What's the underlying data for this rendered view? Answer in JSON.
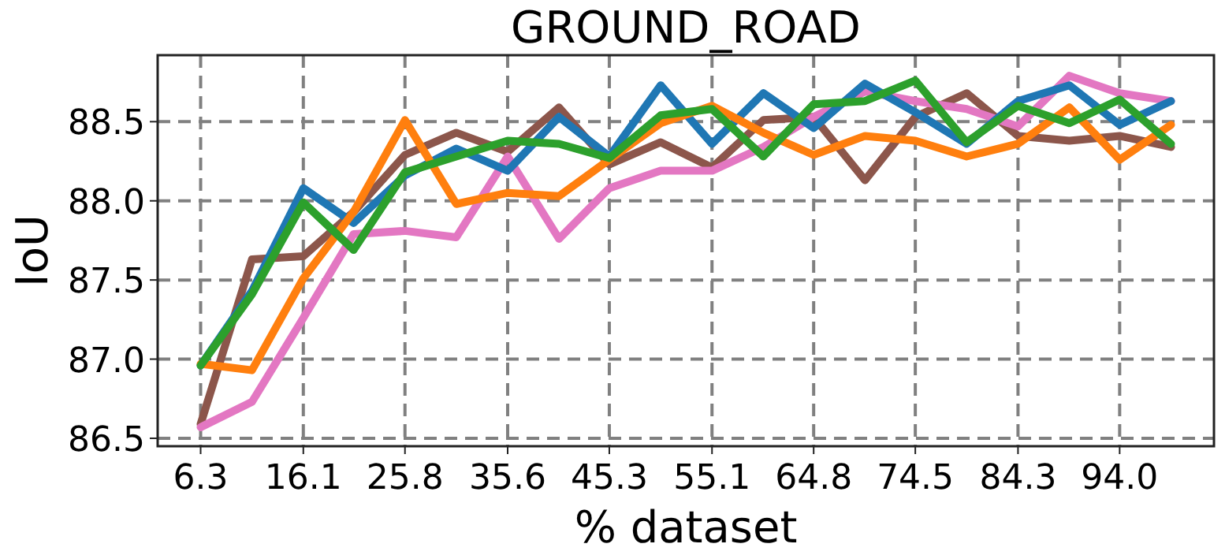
{
  "chart_data": {
    "type": "line",
    "title": "GROUND_ROAD",
    "xlabel": "% dataset",
    "ylabel": "IoU",
    "x": [
      6.3,
      11.2,
      16.1,
      20.9,
      25.8,
      30.7,
      35.6,
      40.5,
      45.3,
      50.2,
      55.1,
      60.0,
      64.8,
      69.7,
      74.5,
      79.4,
      84.3,
      89.2,
      94.0,
      98.9
    ],
    "series": [
      {
        "color": "#8c564b",
        "values": [
          86.59,
          87.63,
          87.65,
          87.93,
          88.29,
          88.43,
          88.31,
          88.59,
          88.23,
          88.37,
          88.21,
          88.51,
          88.53,
          88.13,
          88.53,
          88.68,
          88.41,
          88.38,
          88.41,
          88.34
        ]
      },
      {
        "color": "#e377c2",
        "values": [
          86.57,
          86.73,
          87.26,
          87.79,
          87.81,
          87.77,
          88.28,
          87.76,
          88.08,
          88.19,
          88.19,
          88.34,
          88.53,
          88.69,
          88.63,
          88.58,
          88.47,
          88.79,
          88.68,
          88.63
        ]
      },
      {
        "color": "#1f77b4",
        "values": [
          86.96,
          87.43,
          88.08,
          87.86,
          88.16,
          88.33,
          88.19,
          88.53,
          88.28,
          88.73,
          88.36,
          88.68,
          88.46,
          88.74,
          88.56,
          88.36,
          88.63,
          88.73,
          88.48,
          88.63
        ]
      },
      {
        "color": "#ff7f0e",
        "values": [
          86.97,
          86.93,
          87.51,
          87.93,
          88.51,
          87.98,
          88.05,
          88.03,
          88.26,
          88.49,
          88.6,
          88.43,
          88.29,
          88.41,
          88.38,
          88.28,
          88.36,
          88.59,
          88.26,
          88.48
        ]
      },
      {
        "color": "#2ca02c",
        "values": [
          86.96,
          87.41,
          87.99,
          87.69,
          88.18,
          88.28,
          88.38,
          88.36,
          88.27,
          88.54,
          88.58,
          88.28,
          88.61,
          88.63,
          88.76,
          88.37,
          88.6,
          88.49,
          88.64,
          88.36
        ]
      }
    ],
    "xlim": [
      2.2,
      103.0
    ],
    "ylim": [
      86.45,
      88.92
    ],
    "xticks": [
      6.3,
      16.1,
      25.8,
      35.6,
      45.3,
      55.1,
      64.8,
      74.5,
      84.3,
      {
        "value": 94,
        "label": "94.0"
      }
    ],
    "yticks": [
      86.5,
      {
        "value": 87,
        "label": "87.0"
      },
      87.5,
      {
        "value": 88,
        "label": "88.0"
      },
      88.5
    ],
    "grid": true,
    "line_style": "solid"
  }
}
